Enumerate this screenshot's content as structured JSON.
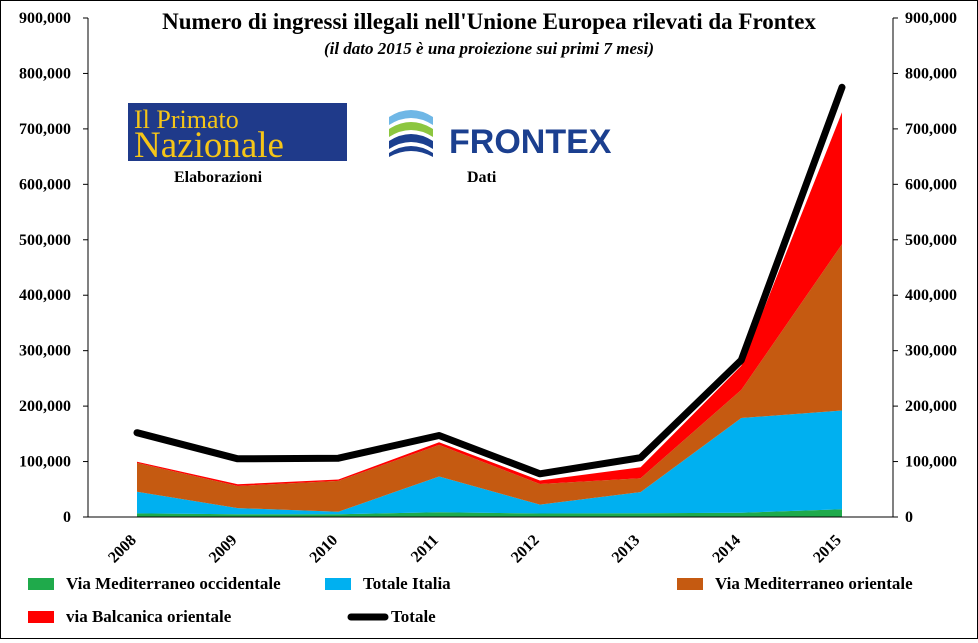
{
  "chart_data": {
    "type": "area",
    "stacked": true,
    "title": "Numero di ingressi illegali nell'Unione Europea rilevati da Frontex",
    "subtitle": "(il dato 2015 è una proiezione  sui primi 7 mesi)",
    "categories": [
      "2008",
      "2009",
      "2010",
      "2011",
      "2012",
      "2013",
      "2014",
      "2015"
    ],
    "ylim": [
      0,
      900000
    ],
    "yticks": [
      "0",
      "100,000",
      "200,000",
      "300,000",
      "400,000",
      "500,000",
      "600,000",
      "700,000",
      "800,000",
      "900,000"
    ],
    "secondary_yticks": [
      "0",
      "100,000",
      "200,000",
      "300,000",
      "400,000",
      "500,000",
      "600,000",
      "700,000",
      "800,000",
      "900,000"
    ],
    "grid": false,
    "legend_position": "bottom",
    "series": [
      {
        "name": "Via Mediterraneo occidentale",
        "color": "#1faa4b",
        "kind": "area",
        "values": [
          6500,
          5000,
          5000,
          8500,
          6400,
          6800,
          7800,
          14000
        ]
      },
      {
        "name": "Totale  Italia",
        "color": "#00b0f0",
        "kind": "area",
        "values": [
          39000,
          11000,
          4500,
          64500,
          15900,
          38200,
          170700,
          178000
        ]
      },
      {
        "name": "Via Mediterraneo orientale",
        "color": "#c55a11",
        "kind": "area",
        "values": [
          52000,
          40000,
          55700,
          57000,
          37200,
          24800,
          50800,
          300000
        ]
      },
      {
        "name": "via Balcanica orientale",
        "color": "#ff0000",
        "kind": "area",
        "values": [
          2000,
          3000,
          2500,
          4700,
          6400,
          19900,
          43400,
          238000
        ]
      },
      {
        "name": "Totale",
        "color": "#000000",
        "kind": "line",
        "values": [
          152000,
          105000,
          106000,
          147000,
          78000,
          107000,
          283000,
          775000
        ]
      }
    ]
  },
  "logos": {
    "primato_line1": "Il Primato",
    "primato_line2": "Nazionale",
    "primato_caption": "Elaborazioni",
    "frontex_name": "FRONTEX",
    "frontex_caption": "Dati"
  },
  "colors": {
    "primato_bg": "#1f3a8a",
    "primato_text": "#f5c518",
    "frontex_blue": "#1b3f8f",
    "frontex_green": "#8cc63f",
    "frontex_lightblue": "#6fb7e6"
  }
}
